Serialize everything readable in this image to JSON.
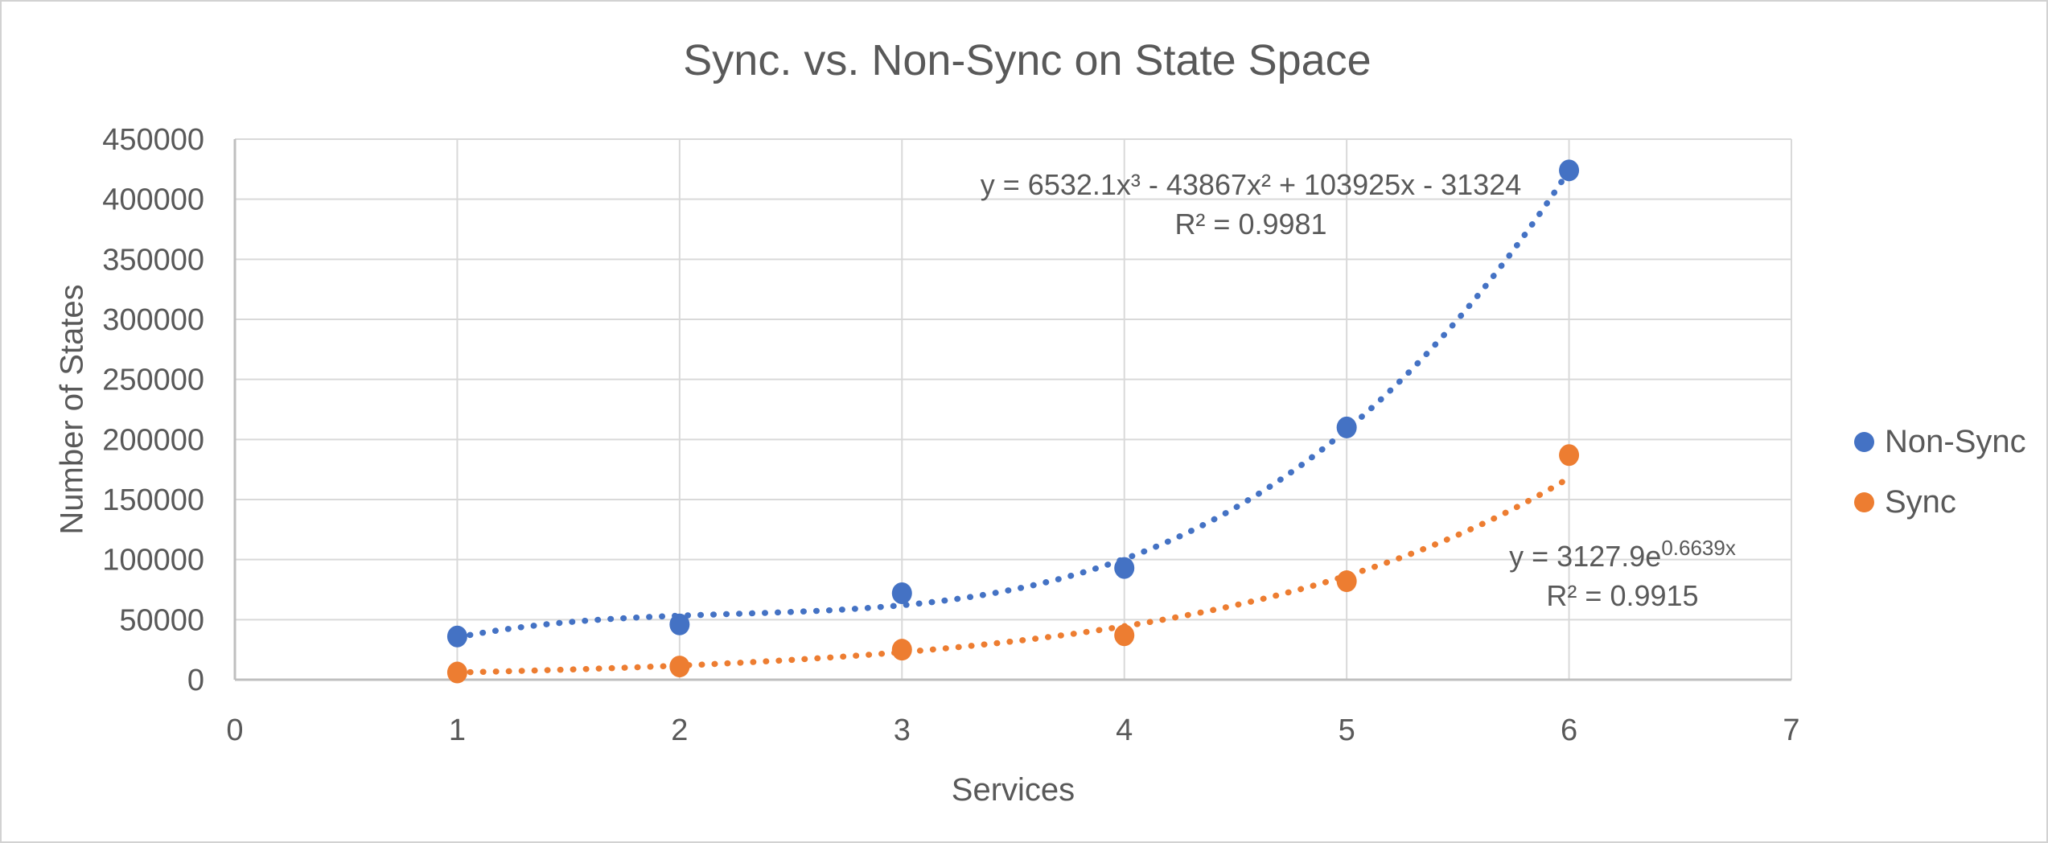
{
  "chart_data": {
    "type": "scatter",
    "title": "Sync. vs. Non-Sync on State Space",
    "xlabel": "Services",
    "ylabel": "Number of States",
    "xlim": [
      0,
      7
    ],
    "ylim": [
      0,
      450000
    ],
    "xticks": [
      0,
      1,
      2,
      3,
      4,
      5,
      6,
      7
    ],
    "yticks": [
      0,
      50000,
      100000,
      150000,
      200000,
      250000,
      300000,
      350000,
      400000,
      450000
    ],
    "grid": true,
    "legend_position": "right",
    "x": [
      1,
      2,
      3,
      4,
      5,
      6
    ],
    "series": [
      {
        "name": "Non-Sync",
        "color": "#4472C4",
        "values": [
          36000,
          46000,
          72000,
          93000,
          210000,
          424000
        ],
        "trendline": {
          "kind": "polynomial",
          "coeffs": [
            6532.1,
            -43867,
            103925,
            -31324
          ],
          "x_range": [
            1,
            6
          ],
          "equation": "y = 6532.1x³ - 43867x² + 103925x - 31324",
          "r2": "R² = 0.9981"
        }
      },
      {
        "name": "Sync",
        "color": "#ED7D31",
        "values": [
          6000,
          11000,
          25000,
          37000,
          82000,
          187000
        ],
        "trendline": {
          "kind": "exponential",
          "a": 3127.9,
          "b": 0.6639,
          "x_range": [
            1,
            6
          ],
          "equation_base": "y = 3127.9e",
          "equation_exp": "0.6639x",
          "r2": "R² = 0.9915"
        }
      }
    ],
    "colors": {
      "gridline": "#D9D9D9",
      "axis_line": "#BFBFBF",
      "text": "#595959"
    }
  }
}
